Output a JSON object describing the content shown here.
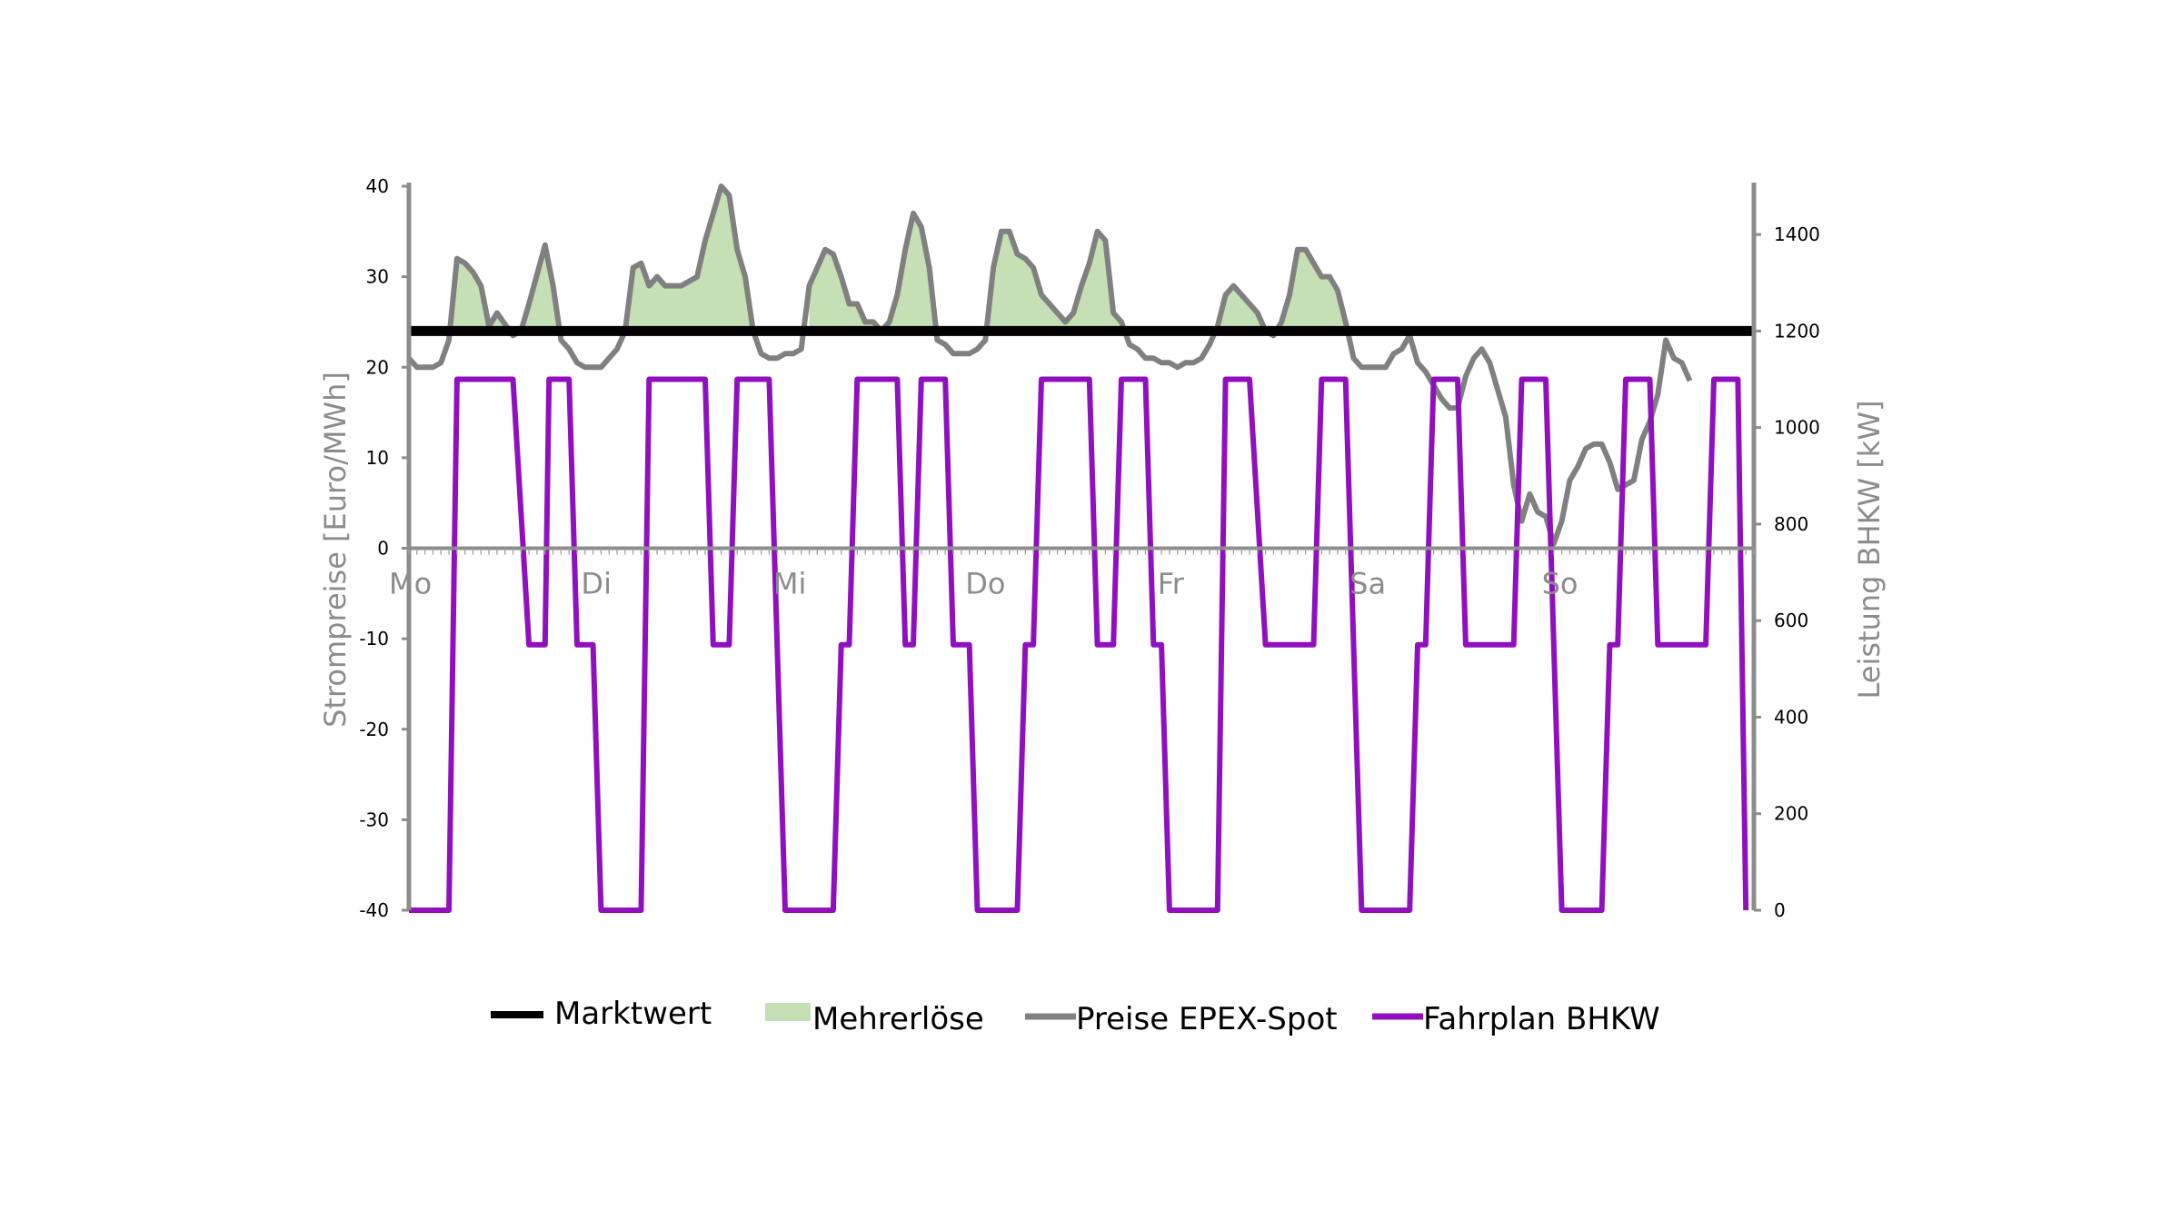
{
  "chart_data": {
    "type": "line",
    "title": "",
    "y_left": {
      "label": "Strompreise [Euro/MWh]",
      "range": [
        -40,
        40
      ],
      "ticks": [
        40,
        30,
        20,
        10,
        0,
        -10,
        -20,
        -30,
        -40
      ]
    },
    "y_right": {
      "label": "Leistung BHKW [kW]",
      "range": [
        0,
        1500
      ],
      "ticks": [
        1400,
        1200,
        1000,
        800,
        600,
        400,
        200,
        0
      ]
    },
    "x": {
      "day_labels": [
        "Mo",
        "Di",
        "Mi",
        "Do",
        "Fr",
        "Sa",
        "So"
      ],
      "range_hours": [
        0,
        168
      ]
    },
    "legend": {
      "position": "bottom",
      "items": [
        {
          "key": "marktwert",
          "label": "Marktwert"
        },
        {
          "key": "mehrerloese",
          "label": "Mehrerlöse"
        },
        {
          "key": "epex",
          "label": "Preise EPEX-Spot"
        },
        {
          "key": "bhkw",
          "label": "Fahrplan BHKW"
        }
      ]
    },
    "series": [
      {
        "name": "Marktwert",
        "axis": "left",
        "color": "#000000",
        "value": 24
      },
      {
        "name": "Preise EPEX-Spot",
        "axis": "left",
        "color": "#808080",
        "points": [
          [
            0,
            21
          ],
          [
            1,
            20
          ],
          [
            3,
            20
          ],
          [
            4,
            20.5
          ],
          [
            5,
            23
          ],
          [
            6,
            32
          ],
          [
            7,
            31.5
          ],
          [
            8,
            30.5
          ],
          [
            9,
            29
          ],
          [
            10,
            24.5
          ],
          [
            11,
            26
          ],
          [
            13,
            23.5
          ],
          [
            14,
            24
          ],
          [
            15,
            27
          ],
          [
            17,
            33.5
          ],
          [
            18,
            29
          ],
          [
            19,
            23
          ],
          [
            20,
            22
          ],
          [
            21,
            20.5
          ],
          [
            22,
            20
          ],
          [
            24,
            20
          ],
          [
            25,
            21
          ],
          [
            26,
            22
          ],
          [
            27,
            24
          ],
          [
            28,
            31
          ],
          [
            29,
            31.5
          ],
          [
            30,
            29
          ],
          [
            31,
            30
          ],
          [
            32,
            29
          ],
          [
            34,
            29
          ],
          [
            35,
            29.5
          ],
          [
            36,
            30
          ],
          [
            37,
            34
          ],
          [
            38,
            37
          ],
          [
            39,
            40
          ],
          [
            40,
            39
          ],
          [
            41,
            33
          ],
          [
            42,
            30
          ],
          [
            43,
            24
          ],
          [
            44,
            21.5
          ],
          [
            45,
            21
          ],
          [
            46,
            21
          ],
          [
            47,
            21.5
          ],
          [
            48,
            21.5
          ],
          [
            49,
            22
          ],
          [
            50,
            29
          ],
          [
            52,
            33
          ],
          [
            53,
            32.5
          ],
          [
            54,
            30
          ],
          [
            55,
            27
          ],
          [
            56,
            27
          ],
          [
            57,
            25
          ],
          [
            58,
            25
          ],
          [
            59,
            24
          ],
          [
            60,
            25
          ],
          [
            61,
            28
          ],
          [
            62,
            33
          ],
          [
            63,
            37
          ],
          [
            64,
            35.5
          ],
          [
            65,
            31
          ],
          [
            66,
            23
          ],
          [
            67,
            22.5
          ],
          [
            68,
            21.5
          ],
          [
            69,
            21.5
          ],
          [
            70,
            21.5
          ],
          [
            71,
            22
          ],
          [
            72,
            23
          ],
          [
            73,
            31
          ],
          [
            74,
            35
          ],
          [
            75,
            35
          ],
          [
            76,
            32.5
          ],
          [
            77,
            32
          ],
          [
            78,
            31
          ],
          [
            79,
            28
          ],
          [
            80,
            27
          ],
          [
            81,
            26
          ],
          [
            82,
            25
          ],
          [
            83,
            26
          ],
          [
            84,
            29
          ],
          [
            85,
            31.5
          ],
          [
            86,
            35
          ],
          [
            87,
            34
          ],
          [
            88,
            26
          ],
          [
            89,
            25
          ],
          [
            90,
            22.5
          ],
          [
            91,
            22
          ],
          [
            92,
            21
          ],
          [
            93,
            21
          ],
          [
            94,
            20.5
          ],
          [
            95,
            20.5
          ],
          [
            96,
            20
          ],
          [
            97,
            20.5
          ],
          [
            98,
            20.5
          ],
          [
            99,
            21
          ],
          [
            100,
            22.5
          ],
          [
            101,
            24.5
          ],
          [
            102,
            28
          ],
          [
            103,
            29
          ],
          [
            104,
            28
          ],
          [
            105,
            27
          ],
          [
            106,
            26
          ],
          [
            107,
            24
          ],
          [
            108,
            23.5
          ],
          [
            109,
            25
          ],
          [
            110,
            28
          ],
          [
            111,
            33
          ],
          [
            112,
            33
          ],
          [
            113,
            31.5
          ],
          [
            114,
            30
          ],
          [
            115,
            30
          ],
          [
            116,
            28.5
          ],
          [
            117,
            25
          ],
          [
            118,
            21
          ],
          [
            119,
            20
          ],
          [
            120,
            20
          ],
          [
            122,
            20
          ],
          [
            123,
            21.5
          ],
          [
            124,
            22
          ],
          [
            125,
            23.5
          ],
          [
            126,
            20.5
          ],
          [
            127,
            19.5
          ],
          [
            128,
            18
          ],
          [
            129,
            16.5
          ],
          [
            130,
            15.5
          ],
          [
            131,
            15.5
          ],
          [
            132,
            19
          ],
          [
            133,
            21
          ],
          [
            134,
            22
          ],
          [
            135,
            20.5
          ],
          [
            136,
            17.5
          ],
          [
            137,
            14.5
          ],
          [
            138,
            7
          ],
          [
            139,
            3
          ],
          [
            140,
            6
          ],
          [
            141,
            4
          ],
          [
            142,
            3.5
          ],
          [
            143,
            0.5
          ],
          [
            144,
            3
          ],
          [
            145,
            7.5
          ],
          [
            146,
            9
          ],
          [
            147,
            11
          ],
          [
            148,
            11.5
          ],
          [
            149,
            11.5
          ],
          [
            150,
            9.5
          ],
          [
            151,
            6.5
          ],
          [
            152,
            7
          ],
          [
            153,
            7.5
          ],
          [
            154,
            12
          ],
          [
            155,
            14
          ],
          [
            156,
            17
          ],
          [
            157,
            23
          ],
          [
            158,
            21
          ],
          [
            159,
            20.5
          ],
          [
            160,
            18.5
          ]
        ]
      },
      {
        "name": "Fahrplan BHKW",
        "axis": "right",
        "color": "#9010c0",
        "points": [
          [
            0,
            0
          ],
          [
            5,
            0
          ],
          [
            6,
            1100
          ],
          [
            13,
            1100
          ],
          [
            15,
            550
          ],
          [
            17,
            550
          ],
          [
            17.5,
            1100
          ],
          [
            20,
            1100
          ],
          [
            21,
            550
          ],
          [
            23,
            550
          ],
          [
            24,
            0
          ],
          [
            29,
            0
          ],
          [
            30,
            1100
          ],
          [
            37,
            1100
          ],
          [
            38,
            550
          ],
          [
            40,
            550
          ],
          [
            41,
            1100
          ],
          [
            45,
            1100
          ],
          [
            47,
            0
          ],
          [
            53,
            0
          ],
          [
            54,
            550
          ],
          [
            55,
            550
          ],
          [
            56,
            1100
          ],
          [
            61,
            1100
          ],
          [
            62,
            550
          ],
          [
            63,
            550
          ],
          [
            64,
            1100
          ],
          [
            67,
            1100
          ],
          [
            68,
            550
          ],
          [
            70,
            550
          ],
          [
            71,
            0
          ],
          [
            76,
            0
          ],
          [
            77,
            550
          ],
          [
            78,
            550
          ],
          [
            79,
            1100
          ],
          [
            85,
            1100
          ],
          [
            86,
            550
          ],
          [
            88,
            550
          ],
          [
            89,
            1100
          ],
          [
            92,
            1100
          ],
          [
            93,
            550
          ],
          [
            94,
            550
          ],
          [
            95,
            0
          ],
          [
            101,
            0
          ],
          [
            102,
            1100
          ],
          [
            105,
            1100
          ],
          [
            107,
            550
          ],
          [
            113,
            550
          ],
          [
            114,
            1100
          ],
          [
            117,
            1100
          ],
          [
            119,
            0
          ],
          [
            125,
            0
          ],
          [
            126,
            550
          ],
          [
            127,
            550
          ],
          [
            128,
            1100
          ],
          [
            131,
            1100
          ],
          [
            132,
            550
          ],
          [
            138,
            550
          ],
          [
            139,
            1100
          ],
          [
            142,
            1100
          ],
          [
            144,
            0
          ],
          [
            149,
            0
          ],
          [
            150,
            550
          ],
          [
            151,
            550
          ],
          [
            152,
            1100
          ],
          [
            155,
            1100
          ],
          [
            156,
            550
          ],
          [
            162,
            550
          ],
          [
            163,
            1100
          ],
          [
            166,
            1100
          ],
          [
            167,
            0
          ]
        ]
      }
    ]
  }
}
